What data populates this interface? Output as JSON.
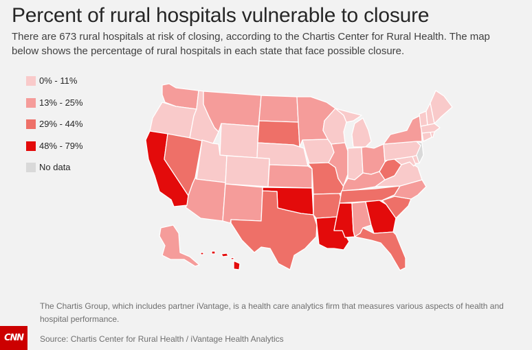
{
  "header": {
    "title": "Percent of rural hospitals vulnerable to closure",
    "subtitle": "There are 673 rural hospitals at risk of closing, according to the Chartis Center for Rural Health. The map below shows the percentage of rural hospitals in each state that face possible closure."
  },
  "legend": [
    {
      "label": "0% - 11%",
      "color": "#f9caca"
    },
    {
      "label": "13% - 25%",
      "color": "#f59c9a"
    },
    {
      "label": "29% - 44%",
      "color": "#ee7068"
    },
    {
      "label": "48% - 79%",
      "color": "#e30b0b"
    },
    {
      "label": "No data",
      "color": "#d9d9d9"
    }
  ],
  "chart_data": {
    "type": "choropleth",
    "classes": {
      "c1": {
        "range": "0% - 11%",
        "color": "#f9caca"
      },
      "c2": {
        "range": "13% - 25%",
        "color": "#f59c9a"
      },
      "c3": {
        "range": "29% - 44%",
        "color": "#ee7068"
      },
      "c4": {
        "range": "48% - 79%",
        "color": "#e30b0b"
      },
      "nd": {
        "range": "No data",
        "color": "#d9d9d9"
      }
    },
    "states": {
      "WA": "c2",
      "OR": "c1",
      "CA": "c4",
      "NV": "c3",
      "ID": "c1",
      "MT": "c2",
      "WY": "c1",
      "UT": "c1",
      "AZ": "c2",
      "CO": "c1",
      "NM": "c2",
      "ND": "c2",
      "SD": "c3",
      "NE": "c1",
      "KS": "c2",
      "OK": "c4",
      "TX": "c3",
      "MN": "c2",
      "IA": "c1",
      "MO": "c3",
      "AR": "c3",
      "LA": "c4",
      "WI": "c1",
      "IL": "c2",
      "MI": "c1",
      "IN": "c1",
      "OH": "c2",
      "KY": "c2",
      "TN": "c3",
      "MS": "c4",
      "AL": "c2",
      "GA": "c4",
      "FL": "c3",
      "SC": "c3",
      "NC": "c2",
      "VA": "c1",
      "WV": "c3",
      "PA": "c1",
      "NY": "c2",
      "VT": "c1",
      "NH": "c1",
      "ME": "c1",
      "MA": "c1",
      "RI": "c1",
      "CT": "c1",
      "NJ": "nd",
      "DE": "c1",
      "MD": "c1",
      "AK": "c2",
      "HI": "c4"
    }
  },
  "footer": {
    "note": "The Chartis Group, which includes partner iVantage, is a health care analytics firm that measures various aspects of health and hospital performance.",
    "source": "Source: Chartis Center for Rural Health / iVantage Health Analytics",
    "logo_text": "CNN"
  }
}
